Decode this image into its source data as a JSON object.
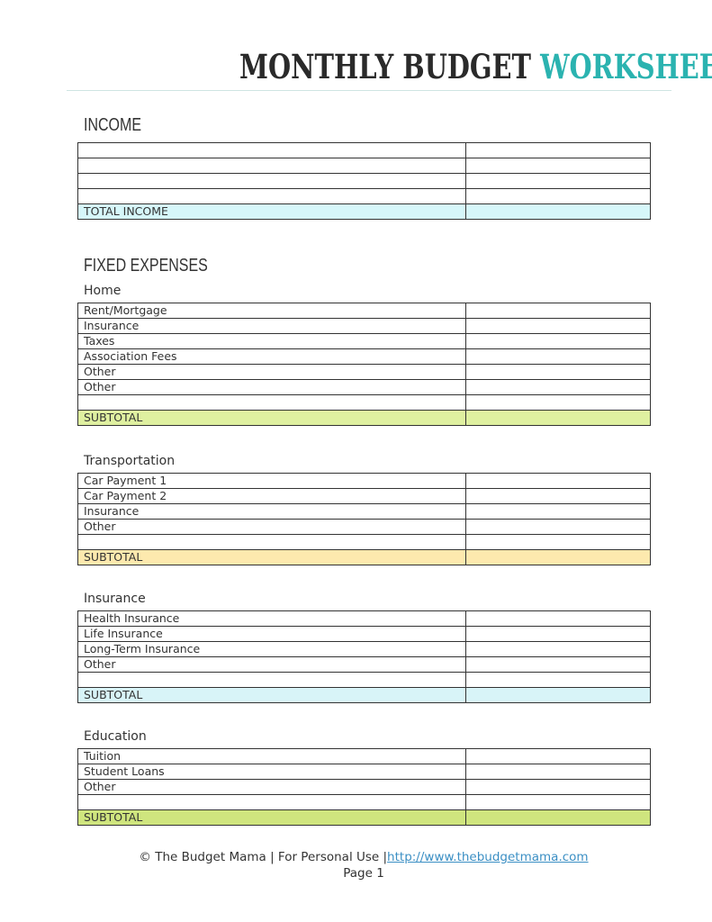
{
  "header": {
    "title_part1": "MONTHLY BUDGET",
    "title_part2": "WORKSHEET"
  },
  "colors": {
    "title_accent": "#2bb3b0",
    "income_total": "#d6f7fa",
    "home_subtotal": "#dff0a0",
    "transportation_subtotal": "#fde9ae",
    "insurance_subtotal": "#d8f4f8",
    "education_subtotal": "#cfe57e"
  },
  "income": {
    "heading": "INCOME",
    "rows": [
      "",
      "",
      "",
      ""
    ],
    "total_label": "TOTAL INCOME"
  },
  "fixed_expenses": {
    "heading": "FIXED EXPENSES"
  },
  "sections": [
    {
      "key": "home",
      "label": "Home",
      "rows": [
        "Rent/Mortgage",
        "Insurance",
        "Taxes",
        "Association Fees",
        "Other",
        "Other",
        ""
      ],
      "subtotal_label": "SUBTOTAL"
    },
    {
      "key": "transportation",
      "label": "Transportation",
      "rows": [
        "Car Payment 1",
        "Car Payment 2",
        "Insurance",
        "Other",
        ""
      ],
      "subtotal_label": "SUBTOTAL"
    },
    {
      "key": "insurance",
      "label": "Insurance",
      "rows": [
        "Health Insurance",
        "Life Insurance",
        "Long-Term Insurance",
        "Other",
        ""
      ],
      "subtotal_label": "SUBTOTAL"
    },
    {
      "key": "education",
      "label": "Education",
      "rows": [
        "Tuition",
        "Student Loans",
        "Other",
        ""
      ],
      "subtotal_label": "SUBTOTAL"
    }
  ],
  "footer": {
    "copyright": "© The Budget Mama  |  For Personal Use  |",
    "link": "http://www.thebudgetmama.com",
    "page": "Page 1"
  }
}
